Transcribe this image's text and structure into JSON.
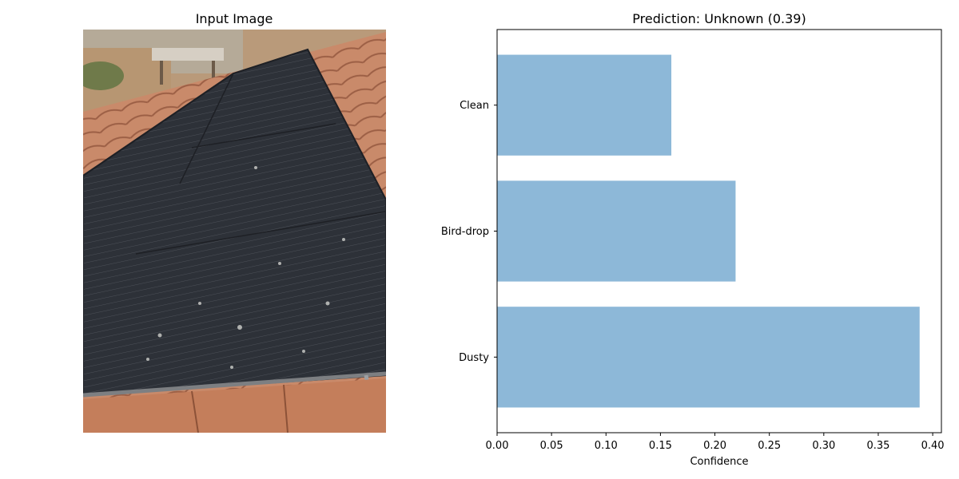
{
  "left_panel": {
    "title": "Input Image"
  },
  "chart_data": {
    "type": "bar",
    "orientation": "horizontal",
    "title": "Prediction: Unknown (0.39)",
    "xlabel": "Confidence",
    "ylabel": "",
    "categories": [
      "Dusty",
      "Bird-drop",
      "Clean"
    ],
    "values": [
      0.388,
      0.219,
      0.16
    ],
    "xlim": [
      0,
      0.408
    ],
    "xticks": [
      0.0,
      0.05,
      0.1,
      0.15,
      0.2,
      0.25,
      0.3,
      0.35,
      0.4
    ],
    "xtick_labels": [
      "0.00",
      "0.05",
      "0.10",
      "0.15",
      "0.20",
      "0.25",
      "0.30",
      "0.35",
      "0.40"
    ],
    "bar_color": "#8db8d8",
    "grid": false,
    "legend": "none"
  }
}
